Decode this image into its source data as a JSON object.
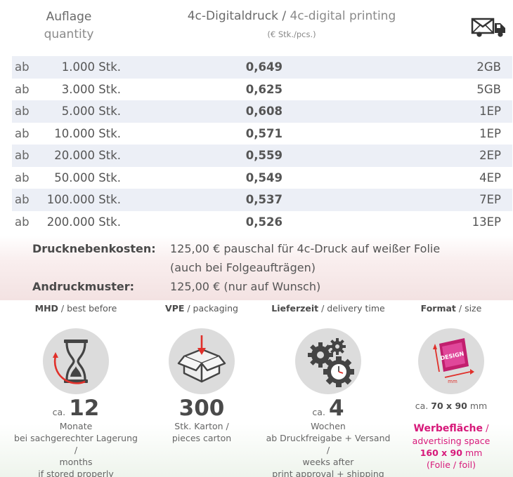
{
  "header": {
    "quantity_de": "Auflage",
    "quantity_en": "quantity",
    "print_de": "4c-Digitaldruck",
    "print_sep": " / ",
    "print_en": "4c-digital printing",
    "print_unit": "(€ Stk./pcs.)",
    "shipping_icon": "truck-mail-icon"
  },
  "price_rows": [
    {
      "prefix": "ab",
      "quantity": "1.000 Stk.",
      "price": "0,649",
      "shipping": "2GB"
    },
    {
      "prefix": "ab",
      "quantity": "3.000 Stk.",
      "price": "0,625",
      "shipping": "5GB"
    },
    {
      "prefix": "ab",
      "quantity": "5.000 Stk.",
      "price": "0,608",
      "shipping": "1EP"
    },
    {
      "prefix": "ab",
      "quantity": "10.000 Stk.",
      "price": "0,571",
      "shipping": "1EP"
    },
    {
      "prefix": "ab",
      "quantity": "20.000 Stk.",
      "price": "0,559",
      "shipping": "2EP"
    },
    {
      "prefix": "ab",
      "quantity": "50.000 Stk.",
      "price": "0,549",
      "shipping": "4EP"
    },
    {
      "prefix": "ab",
      "quantity": "100.000 Stk.",
      "price": "0,537",
      "shipping": "7EP"
    },
    {
      "prefix": "ab",
      "quantity": "200.000 Stk.",
      "price": "0,526",
      "shipping": "13EP"
    }
  ],
  "costs": {
    "side_costs_label": "Drucknebenkosten:",
    "side_costs_line1": "125,00 € pauschal für 4c-Druck auf weißer Folie",
    "side_costs_line2": "(auch bei Folgeaufträgen)",
    "proof_label": "Andruckmuster:",
    "proof_value": "125,00 € (nur auf Wunsch)"
  },
  "features": {
    "mhd": {
      "title_de": "MHD",
      "title_en": " / best before",
      "ca": "ca.",
      "value": "12",
      "line1": "Monate",
      "line2": "bei sachgerechter Lagerung /",
      "line3": "months",
      "line4": "if stored properly"
    },
    "vpe": {
      "title_de": "VPE",
      "title_en": " / packaging",
      "value": "300",
      "line1": "Stk. Karton /",
      "line2": "pieces carton"
    },
    "delivery": {
      "title_de": "Lieferzeit",
      "title_en": " / delivery time",
      "ca": "ca.",
      "value": "4",
      "line1": "Wochen",
      "line2": "ab Druckfreigabe + Versand /",
      "line3": "weeks after",
      "line4": "print approval + shipping"
    },
    "format": {
      "title_de": "Format",
      "title_en": " / size",
      "design_label": "DESIGN",
      "mm_label": "mm",
      "size_ca": "ca.",
      "size_value": "70 x 90",
      "size_unit": " mm",
      "area_de": "Werbefläche",
      "area_sep": " /",
      "area_en": "advertising space",
      "area_value": "160 x 90",
      "area_unit": " mm",
      "area_material": "(Folie / foil)"
    }
  },
  "colors": {
    "accent": "#d7197a",
    "row_stripe": "#eceff6",
    "icon_circle": "#dcdcdc",
    "arrow_red": "#e0302a"
  }
}
